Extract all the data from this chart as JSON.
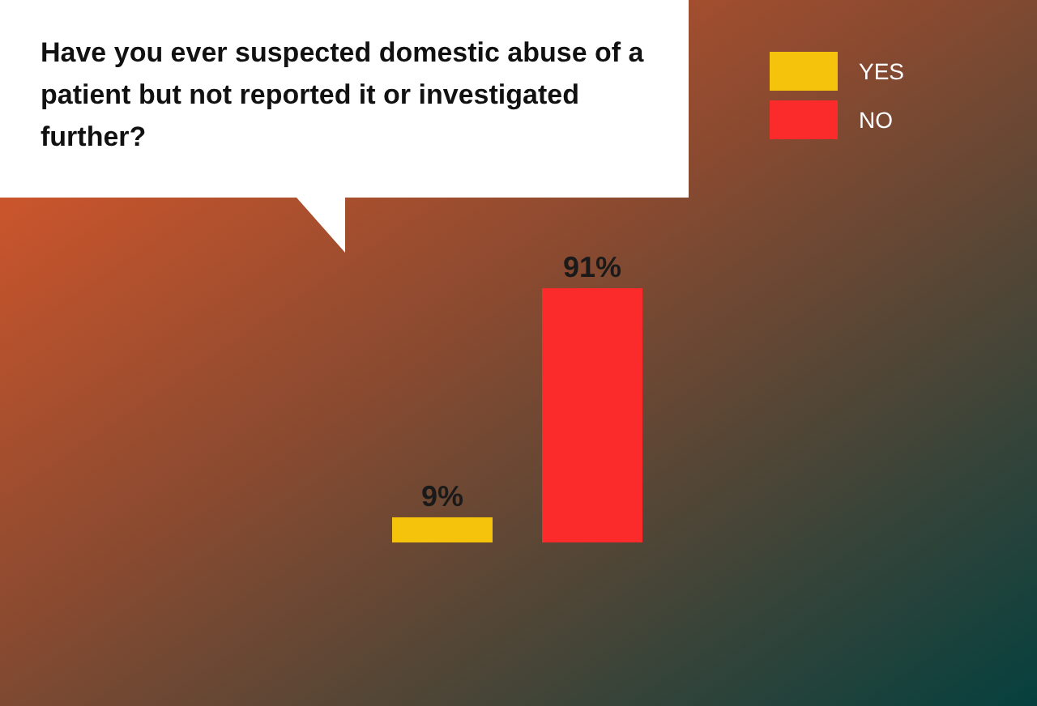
{
  "chart_data": {
    "type": "bar",
    "title": "Have you ever suspected domestic abuse of a patient but not reported it or investigated further?",
    "categories": [
      null,
      null
    ],
    "stacked": true,
    "legend": "top right",
    "series": [
      {
        "name": "YES",
        "color": "#f5c30c",
        "values": [
          9,
          null
        ],
        "value_labels": [
          "9%",
          null
        ]
      },
      {
        "name": "NO",
        "color": "#fc2b2b",
        "values": [
          null,
          91
        ],
        "value_labels": [
          null,
          "91%"
        ]
      }
    ]
  }
}
